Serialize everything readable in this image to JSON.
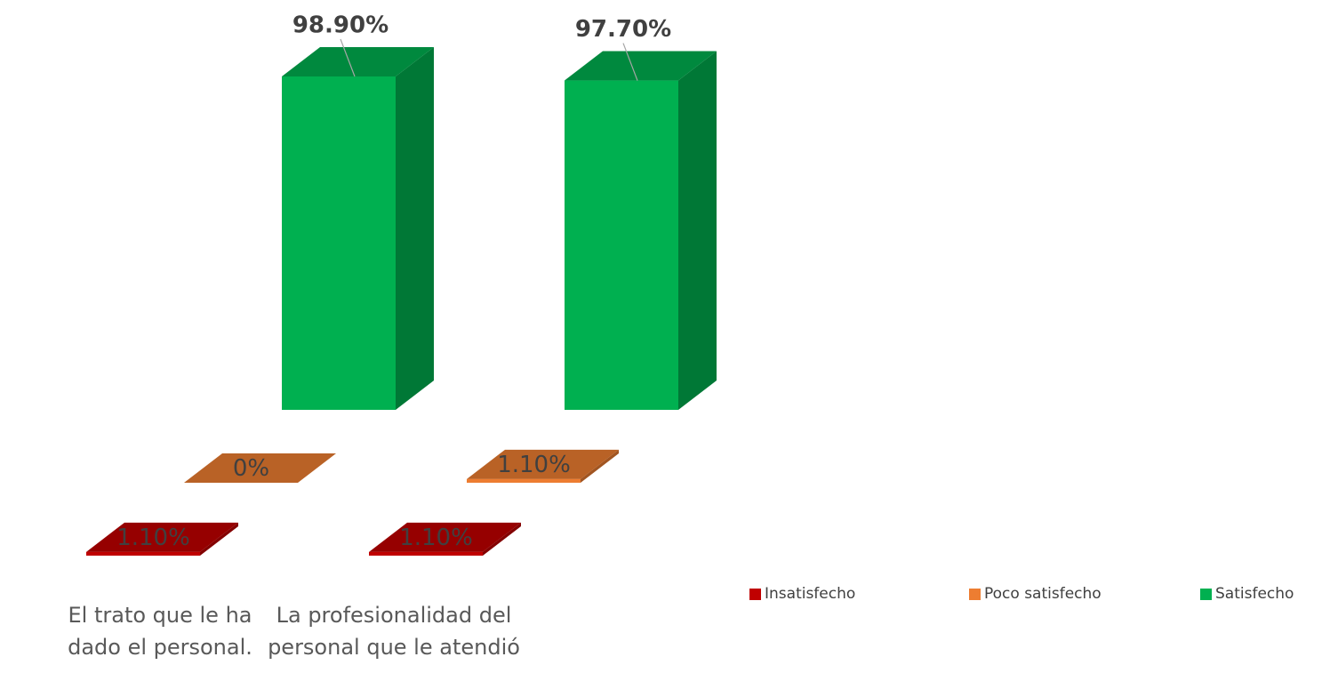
{
  "chart_data": {
    "type": "bar3d",
    "categories": [
      "El trato que le ha dado el personal.",
      "La profesionalidad del personal que le atendió"
    ],
    "series": [
      {
        "name": "Insatisfecho",
        "color": "#c00000",
        "values": [
          1.1,
          1.1
        ],
        "value_labels": [
          "1.10%",
          "1.10%"
        ]
      },
      {
        "name": "Poco satisfecho",
        "color": "#ed7d31",
        "values": [
          0,
          1.1
        ],
        "value_labels": [
          "0%",
          "1.10%"
        ]
      },
      {
        "name": "Satisfecho",
        "color": "#00b050",
        "values": [
          98.9,
          97.7
        ],
        "value_labels": [
          "98.90%",
          "97.70%"
        ]
      }
    ]
  }
}
